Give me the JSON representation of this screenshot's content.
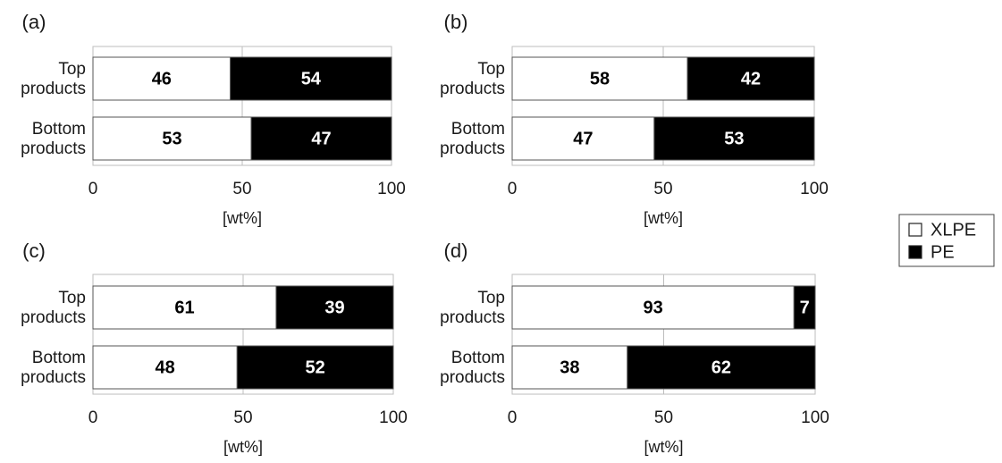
{
  "legend": {
    "items": [
      {
        "name": "XLPE",
        "color": "#ffffff"
      },
      {
        "name": "PE",
        "color": "#000000"
      }
    ],
    "placement": "right"
  },
  "chart_data": [
    {
      "type": "bar",
      "orientation": "horizontal",
      "stacked": true,
      "panel": "(a)",
      "categories": [
        "Top\nproducts",
        "Bottom\nproducts"
      ],
      "series": [
        {
          "name": "XLPE",
          "values": [
            46,
            53
          ]
        },
        {
          "name": "PE",
          "values": [
            54,
            47
          ]
        }
      ],
      "xlim": [
        0,
        100
      ],
      "xticks": [
        "0",
        "50",
        "100"
      ],
      "xlabel": "[wt%]",
      "grid": true
    },
    {
      "type": "bar",
      "orientation": "horizontal",
      "stacked": true,
      "panel": "(b)",
      "categories": [
        "Top\nproducts",
        "Bottom\nproducts"
      ],
      "series": [
        {
          "name": "XLPE",
          "values": [
            58,
            47
          ]
        },
        {
          "name": "PE",
          "values": [
            42,
            53
          ]
        }
      ],
      "xlim": [
        0,
        100
      ],
      "xticks": [
        "0",
        "50",
        "100"
      ],
      "xlabel": "[wt%]",
      "grid": true
    },
    {
      "type": "bar",
      "orientation": "horizontal",
      "stacked": true,
      "panel": "(c)",
      "categories": [
        "Top\nproducts",
        "Bottom\nproducts"
      ],
      "series": [
        {
          "name": "XLPE",
          "values": [
            61,
            48
          ]
        },
        {
          "name": "PE",
          "values": [
            39,
            52
          ]
        }
      ],
      "xlim": [
        0,
        100
      ],
      "xticks": [
        "0",
        "50",
        "100"
      ],
      "xlabel": "[wt%]",
      "grid": true
    },
    {
      "type": "bar",
      "orientation": "horizontal",
      "stacked": true,
      "panel": "(d)",
      "categories": [
        "Top\nproducts",
        "Bottom\nproducts"
      ],
      "series": [
        {
          "name": "XLPE",
          "values": [
            93,
            38
          ]
        },
        {
          "name": "PE",
          "values": [
            7,
            62
          ]
        }
      ],
      "xlim": [
        0,
        100
      ],
      "xticks": [
        "0",
        "50",
        "100"
      ],
      "xlabel": "[wt%]",
      "grid": true
    }
  ]
}
